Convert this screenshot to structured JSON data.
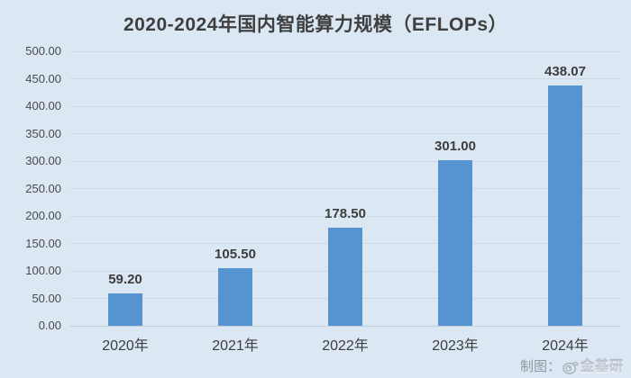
{
  "chart_data": {
    "type": "bar",
    "title": "2020-2024年国内智能算力规模（EFLOPs）",
    "categories": [
      "2020年",
      "2021年",
      "2022年",
      "2023年",
      "2024年"
    ],
    "values": [
      59.2,
      105.5,
      178.5,
      301.0,
      438.07
    ],
    "value_labels": [
      "59.20",
      "105.50",
      "178.50",
      "301.00",
      "438.07"
    ],
    "xlabel": "",
    "ylabel": "",
    "ylim": [
      0,
      500
    ],
    "ytick_values": [
      0,
      50,
      100,
      150,
      200,
      250,
      300,
      350,
      400,
      450,
      500
    ],
    "ytick_labels": [
      "0.00",
      "50.00",
      "100.00",
      "150.00",
      "200.00",
      "250.00",
      "300.00",
      "350.00",
      "400.00",
      "450.00",
      "500.00"
    ],
    "grid": "horizontal",
    "legend": "none",
    "bar_color": "#5693d1",
    "background_color": "#dbe8f4",
    "gridline_color": "#c9d6e2",
    "title_color": "#3f3f3f"
  },
  "watermark": {
    "prefix": "制图：",
    "icon": "weibo-eye-icon",
    "brand": "金基研"
  }
}
